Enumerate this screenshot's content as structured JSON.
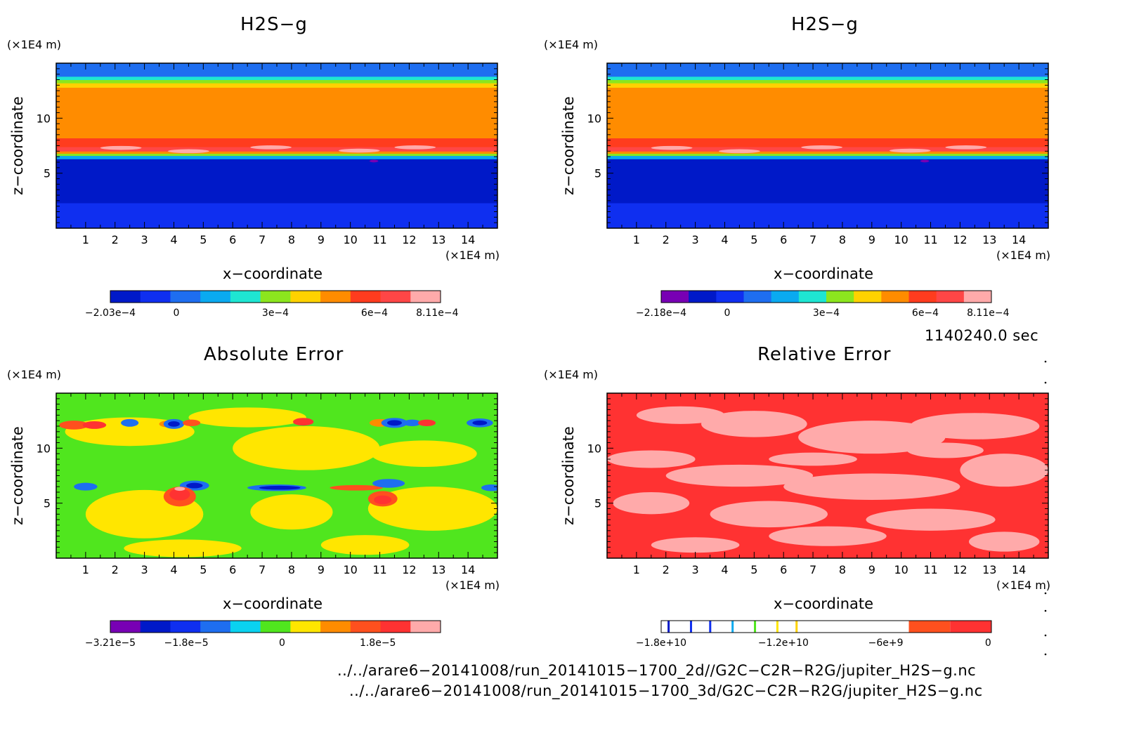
{
  "colors": {
    "h2s": [
      "#0019c8",
      "#0f2ff0",
      "#1e6ef0",
      "#0aaaf0",
      "#1ee6d2",
      "#8ce61e",
      "#ffd200",
      "#ff8c00",
      "#ff3c1e",
      "#ff4646",
      "#ffaaaa"
    ],
    "h2s_b": [
      "#7800b4",
      "#0019c8",
      "#0f2ff0",
      "#1e6ef0",
      "#0aaaf0",
      "#1ee6d2",
      "#8ce61e",
      "#ffd200",
      "#ff8c00",
      "#ff3c1e",
      "#ff4646",
      "#ffaaaa"
    ],
    "abs": [
      "#7800b4",
      "#0019c8",
      "#0f2ff0",
      "#1e6ef0",
      "#0ad2f0",
      "#50e61e",
      "#ffe600",
      "#ff8c00",
      "#ff501e",
      "#ff3232",
      "#ffaaaa"
    ],
    "rel": [
      "#0019c8",
      "#0f2ff0",
      "#0aaaf0",
      "#50e61e",
      "#ffe600",
      "#ffd200",
      "#ff501e",
      "#ff3232"
    ]
  },
  "panels": [
    {
      "title": "H2S−g",
      "ylabel": "z−coordinate",
      "xlabel": "x−coordinate",
      "xunit": "(×1E4 m)",
      "yunit": "(×1E4 m)",
      "colorbar_labels": [
        "−2.03e−4",
        "0",
        "3e−4",
        "6e−4",
        "8.11e−4"
      ]
    },
    {
      "title": "H2S−g",
      "ylabel": "z−coordinate",
      "xlabel": "x−coordinate",
      "xunit": "(×1E4 m)",
      "yunit": "(×1E4 m)",
      "colorbar_labels": [
        "−2.18e−4",
        "0",
        "3e−4",
        "6e−4",
        "8.11e−4"
      ]
    },
    {
      "title": "Absolute Error",
      "ylabel": "z−coordinate",
      "xlabel": "x−coordinate",
      "xunit": "(×1E4 m)",
      "yunit": "(×1E4 m)",
      "colorbar_labels": [
        "−3.21e−5",
        "−1.8e−5",
        "0",
        "1.8e−5"
      ]
    },
    {
      "title": "Relative Error",
      "ylabel": "z−coordinate",
      "xlabel": "x−coordinate",
      "xunit": "(×1E4 m)",
      "yunit": "(×1E4 m)",
      "colorbar_labels": [
        "−1.8e+10",
        "−1.2e+10",
        "−6e+9",
        "0"
      ]
    }
  ],
  "time_label": "1140240.0 sec",
  "file_lines": [
    "../../arare6−20141008/run_20141015−1700_2d//G2C−C2R−R2G/jupiter_H2S−g.nc",
    "../../arare6−20141008/run_20141015−1700_3d/G2C−C2R−R2G/jupiter_H2S−g.nc"
  ],
  "chart_data": [
    {
      "type": "heatmap",
      "title": "H2S−g",
      "xlabel": "x−coordinate",
      "ylabel": "z−coordinate",
      "xunit": "(×1E4 m)",
      "yunit": "(×1E4 m)",
      "xlim": [
        0,
        15
      ],
      "ylim": [
        0,
        15
      ],
      "xticks": [
        1,
        2,
        3,
        4,
        5,
        6,
        7,
        8,
        9,
        10,
        11,
        12,
        13,
        14
      ],
      "yticks": [
        5,
        10
      ],
      "colorbar_labels": [
        "−2.03e−4",
        "0",
        "3e−4",
        "6e−4",
        "8.11e−4"
      ],
      "bands": [
        {
          "z": [
            0,
            2.3
          ],
          "level": 1
        },
        {
          "z": [
            2.3,
            6.3
          ],
          "level": 0
        },
        {
          "z": [
            6.3,
            6.6
          ],
          "level": 3
        },
        {
          "z": [
            6.6,
            6.8
          ],
          "level": 5
        },
        {
          "z": [
            6.8,
            7.0
          ],
          "level": 7
        },
        {
          "z": [
            7.0,
            7.4
          ],
          "level": 9
        },
        {
          "z": [
            7.4,
            8.2
          ],
          "level": 8
        },
        {
          "z": [
            8.2,
            12.8
          ],
          "level": 7
        },
        {
          "z": [
            12.8,
            13.2
          ],
          "level": 6
        },
        {
          "z": [
            13.2,
            13.5
          ],
          "level": 5
        },
        {
          "z": [
            13.5,
            13.8
          ],
          "level": 4
        },
        {
          "z": [
            13.8,
            15
          ],
          "level": 2
        }
      ]
    },
    {
      "type": "heatmap",
      "title": "H2S−g",
      "xlabel": "x−coordinate",
      "ylabel": "z−coordinate",
      "xunit": "(×1E4 m)",
      "yunit": "(×1E4 m)",
      "xlim": [
        0,
        15
      ],
      "ylim": [
        0,
        15
      ],
      "xticks": [
        1,
        2,
        3,
        4,
        5,
        6,
        7,
        8,
        9,
        10,
        11,
        12,
        13,
        14
      ],
      "yticks": [
        5,
        10
      ],
      "colorbar_labels": [
        "−2.18e−4",
        "0",
        "3e−4",
        "6e−4",
        "8.11e−4"
      ],
      "bands": [
        {
          "z": [
            0,
            2.3
          ],
          "level": 2
        },
        {
          "z": [
            2.3,
            6.3
          ],
          "level": 1
        },
        {
          "z": [
            6.3,
            6.6
          ],
          "level": 4
        },
        {
          "z": [
            6.6,
            6.8
          ],
          "level": 6
        },
        {
          "z": [
            6.8,
            7.0
          ],
          "level": 8
        },
        {
          "z": [
            7.0,
            7.4
          ],
          "level": 10
        },
        {
          "z": [
            7.4,
            8.2
          ],
          "level": 9
        },
        {
          "z": [
            8.2,
            12.8
          ],
          "level": 8
        },
        {
          "z": [
            12.8,
            13.2
          ],
          "level": 7
        },
        {
          "z": [
            13.2,
            13.5
          ],
          "level": 6
        },
        {
          "z": [
            13.5,
            13.8
          ],
          "level": 5
        },
        {
          "z": [
            13.8,
            15
          ],
          "level": 3
        }
      ]
    },
    {
      "type": "heatmap",
      "title": "Absolute Error",
      "xlabel": "x−coordinate",
      "ylabel": "z−coordinate",
      "xunit": "(×1E4 m)",
      "yunit": "(×1E4 m)",
      "xlim": [
        0,
        15
      ],
      "ylim": [
        0,
        15
      ],
      "xticks": [
        1,
        2,
        3,
        4,
        5,
        6,
        7,
        8,
        9,
        10,
        11,
        12,
        13,
        14
      ],
      "yticks": [
        5,
        10
      ],
      "colorbar_labels": [
        "−3.21e−5",
        "−1.8e−5",
        "0",
        "1.8e−5"
      ],
      "background_level": 5,
      "blobs": [
        {
          "x": 2.5,
          "z": 11.5,
          "rx": 2.2,
          "rz": 1.3,
          "level": 6
        },
        {
          "x": 8.5,
          "z": 10.0,
          "rx": 2.5,
          "rz": 2.0,
          "level": 6
        },
        {
          "x": 6.5,
          "z": 12.8,
          "rx": 2.0,
          "rz": 0.9,
          "level": 6
        },
        {
          "x": 12.5,
          "z": 9.5,
          "rx": 1.8,
          "rz": 1.2,
          "level": 6
        },
        {
          "x": 3.0,
          "z": 4.0,
          "rx": 2.0,
          "rz": 2.2,
          "level": 6
        },
        {
          "x": 8.0,
          "z": 4.2,
          "rx": 1.4,
          "rz": 1.6,
          "level": 6
        },
        {
          "x": 12.8,
          "z": 4.5,
          "rx": 2.2,
          "rz": 2.0,
          "level": 6
        },
        {
          "x": 4.3,
          "z": 0.9,
          "rx": 2.0,
          "rz": 0.8,
          "level": 6
        },
        {
          "x": 10.5,
          "z": 1.2,
          "rx": 1.5,
          "rz": 0.9,
          "level": 6
        },
        {
          "x": 0.6,
          "z": 12.1,
          "rx": 0.5,
          "rz": 0.4,
          "level": 8
        },
        {
          "x": 1.3,
          "z": 12.1,
          "rx": 0.4,
          "rz": 0.35,
          "level": 9
        },
        {
          "x": 2.5,
          "z": 12.3,
          "rx": 0.3,
          "rz": 0.35,
          "level": 3
        },
        {
          "x": 3.8,
          "z": 12.2,
          "rx": 0.3,
          "rz": 0.3,
          "level": 7
        },
        {
          "x": 4.0,
          "z": 12.2,
          "rx": 0.35,
          "rz": 0.45,
          "level": 3
        },
        {
          "x": 4.0,
          "z": 12.2,
          "rx": 0.2,
          "rz": 0.25,
          "level": 1
        },
        {
          "x": 4.6,
          "z": 12.3,
          "rx": 0.3,
          "rz": 0.3,
          "level": 8
        },
        {
          "x": 8.4,
          "z": 12.4,
          "rx": 0.35,
          "rz": 0.35,
          "level": 9
        },
        {
          "x": 11.0,
          "z": 12.3,
          "rx": 0.35,
          "rz": 0.35,
          "level": 7
        },
        {
          "x": 11.5,
          "z": 12.3,
          "rx": 0.45,
          "rz": 0.45,
          "level": 3
        },
        {
          "x": 11.5,
          "z": 12.3,
          "rx": 0.25,
          "rz": 0.25,
          "level": 1
        },
        {
          "x": 12.1,
          "z": 12.3,
          "rx": 0.3,
          "rz": 0.3,
          "level": 3
        },
        {
          "x": 12.6,
          "z": 12.3,
          "rx": 0.3,
          "rz": 0.3,
          "level": 9
        },
        {
          "x": 14.4,
          "z": 12.3,
          "rx": 0.45,
          "rz": 0.4,
          "level": 3
        },
        {
          "x": 14.4,
          "z": 12.3,
          "rx": 0.25,
          "rz": 0.22,
          "level": 1
        },
        {
          "x": 4.7,
          "z": 6.6,
          "rx": 0.5,
          "rz": 0.45,
          "level": 3
        },
        {
          "x": 4.7,
          "z": 6.6,
          "rx": 0.28,
          "rz": 0.25,
          "level": 1
        },
        {
          "x": 4.2,
          "z": 5.6,
          "rx": 0.55,
          "rz": 0.9,
          "level": 8
        },
        {
          "x": 4.2,
          "z": 5.8,
          "rx": 0.35,
          "rz": 0.55,
          "level": 9
        },
        {
          "x": 4.2,
          "z": 6.3,
          "rx": 0.18,
          "rz": 0.18,
          "level": 10
        },
        {
          "x": 7.5,
          "z": 6.4,
          "rx": 1.0,
          "rz": 0.3,
          "level": 3
        },
        {
          "x": 7.6,
          "z": 6.4,
          "rx": 0.7,
          "rz": 0.18,
          "level": 1
        },
        {
          "x": 10.2,
          "z": 6.4,
          "rx": 0.9,
          "rz": 0.25,
          "level": 8
        },
        {
          "x": 11.1,
          "z": 5.4,
          "rx": 0.5,
          "rz": 0.7,
          "level": 8
        },
        {
          "x": 11.1,
          "z": 5.3,
          "rx": 0.3,
          "rz": 0.4,
          "level": 9
        },
        {
          "x": 11.3,
          "z": 6.8,
          "rx": 0.55,
          "rz": 0.4,
          "level": 3
        },
        {
          "x": 1.0,
          "z": 6.5,
          "rx": 0.4,
          "rz": 0.35,
          "level": 3
        },
        {
          "x": 14.8,
          "z": 6.4,
          "rx": 0.35,
          "rz": 0.3,
          "level": 3
        }
      ]
    },
    {
      "type": "heatmap",
      "title": "Relative Error",
      "xlabel": "x−coordinate",
      "ylabel": "z−coordinate",
      "xunit": "(×1E4 m)",
      "yunit": "(×1E4 m)",
      "xlim": [
        0,
        15
      ],
      "ylim": [
        0,
        15
      ],
      "xticks": [
        1,
        2,
        3,
        4,
        5,
        6,
        7,
        8,
        9,
        10,
        11,
        12,
        13,
        14
      ],
      "yticks": [
        5,
        10
      ],
      "colorbar_labels": [
        "−1.8e+10",
        "−1.2e+10",
        "−6e+9",
        "0"
      ],
      "background_level": 7,
      "light_color": "#ffaaaa",
      "blobs": [
        {
          "x": 2.5,
          "z": 13.0,
          "rx": 1.5,
          "rz": 0.8
        },
        {
          "x": 5.0,
          "z": 12.2,
          "rx": 1.8,
          "rz": 1.2
        },
        {
          "x": 9.0,
          "z": 11.0,
          "rx": 2.5,
          "rz": 1.5
        },
        {
          "x": 12.5,
          "z": 12.0,
          "rx": 2.2,
          "rz": 1.2
        },
        {
          "x": 1.5,
          "z": 9.0,
          "rx": 1.5,
          "rz": 0.8
        },
        {
          "x": 4.5,
          "z": 7.5,
          "rx": 2.5,
          "rz": 1.0
        },
        {
          "x": 9.0,
          "z": 6.5,
          "rx": 3.0,
          "rz": 1.2
        },
        {
          "x": 13.5,
          "z": 8.0,
          "rx": 1.5,
          "rz": 1.5
        },
        {
          "x": 1.5,
          "z": 5.0,
          "rx": 1.3,
          "rz": 1.0
        },
        {
          "x": 5.5,
          "z": 4.0,
          "rx": 2.0,
          "rz": 1.2
        },
        {
          "x": 11.0,
          "z": 3.5,
          "rx": 2.2,
          "rz": 1.0
        },
        {
          "x": 7.5,
          "z": 2.0,
          "rx": 2.0,
          "rz": 0.9
        },
        {
          "x": 3.0,
          "z": 1.2,
          "rx": 1.5,
          "rz": 0.7
        },
        {
          "x": 13.5,
          "z": 1.5,
          "rx": 1.2,
          "rz": 0.9
        },
        {
          "x": 7.0,
          "z": 9.0,
          "rx": 1.5,
          "rz": 0.6
        },
        {
          "x": 11.5,
          "z": 9.8,
          "rx": 1.3,
          "rz": 0.7
        }
      ]
    }
  ]
}
